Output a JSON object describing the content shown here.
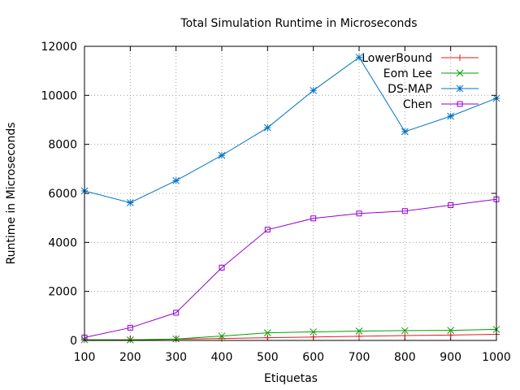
{
  "chart_data": {
    "type": "line",
    "title": "Total Simulation Runtime in Microseconds",
    "xlabel": "Etiquetas",
    "ylabel": "Runtime in Microseconds",
    "xlim": [
      100,
      1000
    ],
    "ylim": [
      0,
      12000
    ],
    "x_ticks": [
      100,
      200,
      300,
      400,
      500,
      600,
      700,
      800,
      900,
      1000
    ],
    "y_ticks": [
      0,
      2000,
      4000,
      6000,
      8000,
      10000,
      12000
    ],
    "grid": true,
    "legend_position": "top-right",
    "x": [
      100,
      200,
      300,
      400,
      500,
      600,
      700,
      800,
      900,
      1000
    ],
    "series": [
      {
        "name": "LowerBound",
        "color": "#e41a1c",
        "marker": "plus",
        "values": [
          20,
          30,
          50,
          80,
          110,
          140,
          170,
          200,
          220,
          250
        ]
      },
      {
        "name": "Eom Lee",
        "color": "#00a000",
        "marker": "cross",
        "values": [
          30,
          20,
          60,
          180,
          310,
          350,
          380,
          400,
          410,
          450
        ]
      },
      {
        "name": "DS-MAP",
        "color": "#0072c6",
        "marker": "star",
        "values": [
          6100,
          5620,
          6520,
          7550,
          8680,
          10200,
          11550,
          8520,
          9150,
          9880
        ]
      },
      {
        "name": "Chen",
        "color": "#9400d3",
        "marker": "square",
        "values": [
          120,
          520,
          1130,
          2970,
          4520,
          4980,
          5180,
          5280,
          5520,
          5760
        ]
      }
    ]
  }
}
